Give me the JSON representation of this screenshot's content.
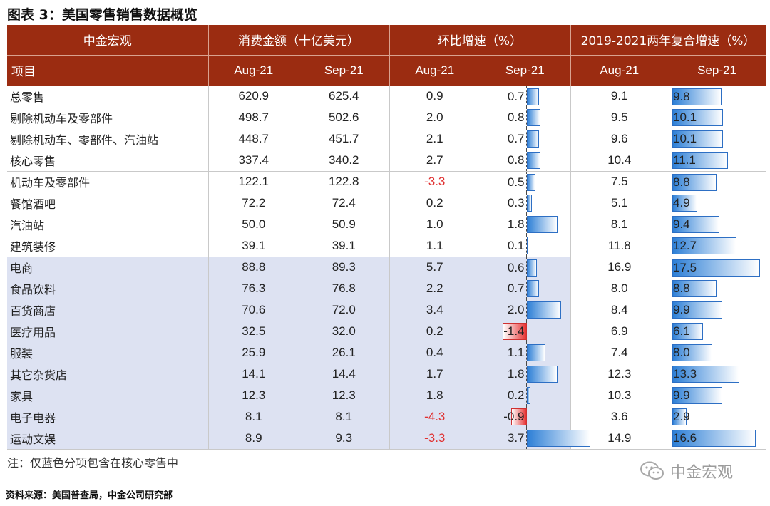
{
  "title": "图表 3：美国零售销售数据概览",
  "header": {
    "brand": "中金宏观",
    "group_value": "消费金额（十亿美元）",
    "group_mom": "环比增速（%）",
    "group_cagr": "2019-2021两年复合增速（%）",
    "item_label": "项目",
    "months": [
      "Aug-21",
      "Sep-21",
      "Aug-21",
      "Sep-21",
      "Aug-21",
      "Sep-21"
    ]
  },
  "chart_data": {
    "type": "table",
    "columns": [
      "项目",
      "消费金额 Aug-21",
      "消费金额 Sep-21",
      "环比增速 Aug-21",
      "环比增速 Sep-21",
      "两年复合增速 Aug-21",
      "两年复合增速 Sep-21"
    ],
    "rows": [
      {
        "name": "总零售",
        "v_aug": "620.9",
        "v_sep": "625.4",
        "m_aug": "0.9",
        "m_sep": "0.7",
        "c_aug": "9.1",
        "c_sep": "9.8",
        "blue": false
      },
      {
        "name": "剔除机动车及零部件",
        "v_aug": "498.7",
        "v_sep": "502.6",
        "m_aug": "2.0",
        "m_sep": "0.8",
        "c_aug": "9.5",
        "c_sep": "10.1",
        "blue": false
      },
      {
        "name": "剔除机动车、零部件、汽油站",
        "v_aug": "448.7",
        "v_sep": "451.7",
        "m_aug": "2.1",
        "m_sep": "0.7",
        "c_aug": "9.6",
        "c_sep": "10.1",
        "blue": false
      },
      {
        "name": "核心零售",
        "v_aug": "337.4",
        "v_sep": "340.2",
        "m_aug": "2.7",
        "m_sep": "0.8",
        "c_aug": "10.4",
        "c_sep": "11.1",
        "blue": false
      },
      {
        "name": "机动车及零部件",
        "v_aug": "122.1",
        "v_sep": "122.8",
        "m_aug": "-3.3",
        "m_sep": "0.5",
        "c_aug": "7.5",
        "c_sep": "8.8",
        "blue": false
      },
      {
        "name": "餐馆酒吧",
        "v_aug": "72.2",
        "v_sep": "72.4",
        "m_aug": "0.2",
        "m_sep": "0.3",
        "c_aug": "5.1",
        "c_sep": "4.9",
        "blue": false
      },
      {
        "name": "汽油站",
        "v_aug": "50.0",
        "v_sep": "50.9",
        "m_aug": "1.0",
        "m_sep": "1.8",
        "c_aug": "8.1",
        "c_sep": "9.4",
        "blue": false
      },
      {
        "name": "建筑装修",
        "v_aug": "39.1",
        "v_sep": "39.1",
        "m_aug": "1.1",
        "m_sep": "0.1",
        "c_aug": "11.8",
        "c_sep": "12.7",
        "blue": false
      },
      {
        "name": "电商",
        "v_aug": "88.8",
        "v_sep": "89.3",
        "m_aug": "5.7",
        "m_sep": "0.6",
        "c_aug": "16.9",
        "c_sep": "17.5",
        "blue": true
      },
      {
        "name": "食品饮料",
        "v_aug": "76.3",
        "v_sep": "76.8",
        "m_aug": "2.2",
        "m_sep": "0.7",
        "c_aug": "8.0",
        "c_sep": "8.8",
        "blue": true
      },
      {
        "name": "百货商店",
        "v_aug": "70.6",
        "v_sep": "72.0",
        "m_aug": "3.4",
        "m_sep": "2.0",
        "c_aug": "8.4",
        "c_sep": "9.9",
        "blue": true
      },
      {
        "name": "医疗用品",
        "v_aug": "32.5",
        "v_sep": "32.0",
        "m_aug": "0.2",
        "m_sep": "-1.4",
        "c_aug": "6.9",
        "c_sep": "6.1",
        "blue": true
      },
      {
        "name": "服装",
        "v_aug": "25.9",
        "v_sep": "26.1",
        "m_aug": "0.4",
        "m_sep": "1.1",
        "c_aug": "7.4",
        "c_sep": "8.0",
        "blue": true
      },
      {
        "name": "其它杂货店",
        "v_aug": "14.1",
        "v_sep": "14.4",
        "m_aug": "1.7",
        "m_sep": "1.8",
        "c_aug": "12.3",
        "c_sep": "13.3",
        "blue": true
      },
      {
        "name": "家具",
        "v_aug": "12.3",
        "v_sep": "12.3",
        "m_aug": "1.8",
        "m_sep": "0.2",
        "c_aug": "10.3",
        "c_sep": "9.9",
        "blue": true
      },
      {
        "name": "电子电器",
        "v_aug": "8.1",
        "v_sep": "8.1",
        "m_aug": "-4.3",
        "m_sep": "-0.9",
        "c_aug": "3.6",
        "c_sep": "2.9",
        "blue": true
      },
      {
        "name": "运动文娱",
        "v_aug": "8.9",
        "v_sep": "9.3",
        "m_aug": "-3.3",
        "m_sep": "3.7",
        "c_aug": "14.9",
        "c_sep": "16.6",
        "blue": true
      }
    ],
    "group_breaks_after": [
      3,
      7
    ]
  },
  "colors": {
    "header_bg": "#9b2c11",
    "core_highlight": "#dde2f2",
    "negative_text": "#e03030",
    "bar_blue": "#2d7fd6",
    "bar_red": "#e63232"
  },
  "note": "注：仅蓝色分项包含在核心零售中",
  "source": "资料来源：美国普查局，中金公司研究部",
  "watermark": "中金宏观",
  "watermark_icon": "wechat-icon"
}
